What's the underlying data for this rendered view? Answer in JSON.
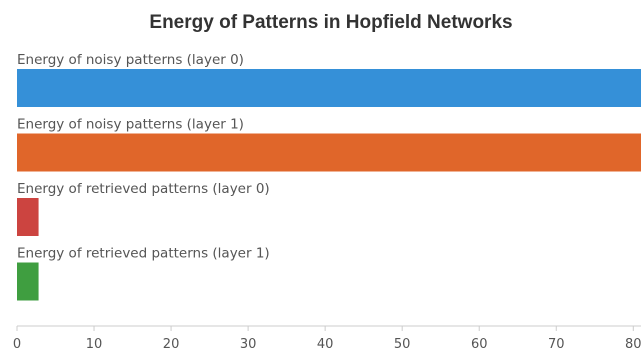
{
  "chart_data": {
    "type": "bar",
    "orientation": "horizontal",
    "title": "Energy of Patterns in Hopfield Networks",
    "xlabel": "",
    "ylabel": "",
    "categories": [
      "Energy of noisy patterns (layer 0)",
      "Energy of noisy patterns (layer 1)",
      "Energy of retrieved patterns (layer 0)",
      "Energy of retrieved patterns (layer 1)"
    ],
    "values": [
      81,
      81,
      2.8,
      2.8
    ],
    "colors": [
      "#3590d8",
      "#e0662a",
      "#cc4440",
      "#3f9e40"
    ],
    "xlim": [
      0,
      81
    ],
    "xticks": [
      0,
      10,
      20,
      30,
      40,
      50,
      60,
      70,
      80
    ],
    "grid": false,
    "legend": "none"
  }
}
